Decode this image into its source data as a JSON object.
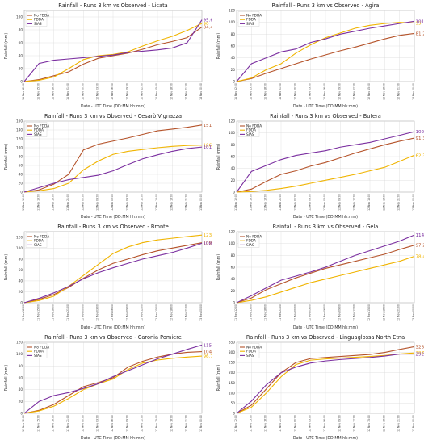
{
  "colors": {
    "No FDDA": "#b5532a",
    "FDDA": "#f0b400",
    "SIAS": "#7b2fa0"
  },
  "chart_data": [
    {
      "type": "line",
      "title": "Rainfall - Runs 3 km vs Observed - Licata",
      "xlabel": "Date - UTC Time (DD:MM hh:mm)",
      "ylabel": "Rainfall (mm)",
      "ylim": [
        0,
        110
      ],
      "yticks": [
        0,
        20,
        40,
        60,
        80,
        100
      ],
      "legend": "top-left",
      "grid": true,
      "xticks": [
        "11 Nov 12:00",
        "11 Nov 15:00",
        "11 Nov 18:00",
        "11 Nov 21:00",
        "12 Nov 00:00",
        "12 Nov 03:00",
        "12 Nov 06:00",
        "12 Nov 09:00",
        "12 Nov 12:00",
        "12 Nov 15:00",
        "12 Nov 18:00",
        "12 Nov 21:00",
        "13 Nov 00:00"
      ],
      "x": [
        0,
        1,
        2,
        3,
        4,
        5,
        6,
        7,
        8,
        9,
        10,
        11,
        12
      ],
      "series": [
        {
          "name": "No FDDA",
          "values": [
            0,
            3,
            9,
            15,
            27,
            36,
            40,
            44,
            50,
            57,
            62,
            68,
            84.4
          ],
          "end_label": "84.4"
        },
        {
          "name": "FDDA",
          "values": [
            0,
            2,
            7,
            20,
            34,
            40,
            42,
            46,
            55,
            63,
            70,
            79,
            90
          ],
          "end_label": "90"
        },
        {
          "name": "SIAS",
          "values": [
            0,
            28,
            33,
            35,
            37,
            39,
            41,
            45,
            47,
            49,
            52,
            60,
            95.6
          ],
          "end_label": "95.6"
        }
      ]
    },
    {
      "type": "line",
      "title": "Rainfall - Runs 3 km vs Observed - Agira",
      "xlabel": "Date - UTC Time (DD:MM hh:mm)",
      "ylabel": "Rainfall (mm)",
      "ylim": [
        0,
        120
      ],
      "yticks": [
        0,
        20,
        40,
        60,
        80,
        100,
        120
      ],
      "legend": "top-left",
      "grid": true,
      "xticks": [
        "11 Nov 12:00",
        "11 Nov 15:00",
        "11 Nov 18:00",
        "11 Nov 21:00",
        "12 Nov 00:00",
        "12 Nov 03:00",
        "12 Nov 06:00",
        "12 Nov 09:00",
        "12 Nov 12:00",
        "12 Nov 15:00",
        "12 Nov 18:00",
        "12 Nov 21:00",
        "13 Nov 00:00"
      ],
      "x": [
        0,
        1,
        2,
        3,
        4,
        5,
        6,
        7,
        8,
        9,
        10,
        11,
        12
      ],
      "series": [
        {
          "name": "No FDDA",
          "values": [
            0,
            5,
            14,
            22,
            30,
            38,
            45,
            52,
            58,
            65,
            72,
            78,
            81.2
          ],
          "end_label": "81.2"
        },
        {
          "name": "FDDA",
          "values": [
            0,
            6,
            20,
            30,
            48,
            62,
            74,
            82,
            90,
            95,
            98,
            100,
            99
          ],
          "end_label": "99"
        },
        {
          "name": "SIAS",
          "values": [
            0,
            30,
            40,
            50,
            55,
            66,
            72,
            80,
            85,
            90,
            94,
            98,
            101.9
          ],
          "end_label": "101.9"
        }
      ]
    },
    {
      "type": "line",
      "title": "Rainfall - Runs 3 km vs Observed - Cesarò Vignazza",
      "xlabel": "Date - UTC Time (DD:MM hh:mm)",
      "ylabel": "Rainfall (mm)",
      "ylim": [
        0,
        160
      ],
      "yticks": [
        0,
        20,
        40,
        60,
        80,
        100,
        120,
        140,
        160
      ],
      "legend": "top-left",
      "grid": true,
      "xticks": [
        "11 Nov 12:00",
        "11 Nov 15:00",
        "11 Nov 18:00",
        "11 Nov 21:00",
        "12 Nov 00:00",
        "12 Nov 03:00",
        "12 Nov 06:00",
        "12 Nov 09:00",
        "12 Nov 12:00",
        "12 Nov 15:00",
        "12 Nov 18:00",
        "12 Nov 21:00",
        "13 Nov 00:00"
      ],
      "x": [
        0,
        1,
        2,
        3,
        4,
        5,
        6,
        7,
        8,
        9,
        10,
        11,
        12
      ],
      "series": [
        {
          "name": "No FDDA",
          "values": [
            0,
            5,
            18,
            40,
            95,
            108,
            115,
            122,
            130,
            138,
            142,
            146,
            151.3
          ],
          "end_label": "151.3"
        },
        {
          "name": "FDDA",
          "values": [
            0,
            3,
            8,
            20,
            50,
            70,
            85,
            92,
            96,
            100,
            103,
            105,
            106
          ],
          "end_label": "106"
        },
        {
          "name": "SIAS",
          "values": [
            0,
            10,
            20,
            28,
            33,
            38,
            48,
            62,
            75,
            84,
            92,
            98,
            101.6
          ],
          "end_label": "101.6"
        }
      ]
    },
    {
      "type": "line",
      "title": "Rainfall - Runs 3 km vs Observed - Butera",
      "xlabel": "Date - UTC Time (DD:MM hh:mm)",
      "ylabel": "Rainfall (mm)",
      "ylim": [
        0,
        120
      ],
      "yticks": [
        0,
        20,
        40,
        60,
        80,
        100,
        120
      ],
      "legend": "top-left",
      "grid": true,
      "xticks": [
        "11 Nov 12:00",
        "11 Nov 15:00",
        "11 Nov 18:00",
        "11 Nov 21:00",
        "12 Nov 00:00",
        "12 Nov 03:00",
        "12 Nov 06:00",
        "12 Nov 09:00",
        "12 Nov 12:00",
        "12 Nov 15:00",
        "12 Nov 18:00",
        "12 Nov 21:00",
        "13 Nov 00:00"
      ],
      "x": [
        0,
        1,
        2,
        3,
        4,
        5,
        6,
        7,
        8,
        9,
        10,
        11,
        12
      ],
      "series": [
        {
          "name": "No FDDA",
          "values": [
            0,
            5,
            18,
            30,
            36,
            44,
            50,
            58,
            66,
            73,
            80,
            86,
            91.3
          ],
          "end_label": "91.3"
        },
        {
          "name": "FDDA",
          "values": [
            0,
            1,
            3,
            6,
            10,
            15,
            20,
            25,
            30,
            36,
            42,
            52,
            62.3
          ],
          "end_label": "62.3"
        },
        {
          "name": "SIAS",
          "values": [
            0,
            35,
            45,
            55,
            62,
            66,
            70,
            76,
            80,
            84,
            90,
            96,
            102.2
          ],
          "end_label": "102.2"
        }
      ]
    },
    {
      "type": "line",
      "title": "Rainfall - Runs 3 km vs Observed - Bronte",
      "xlabel": "Date - UTC Time (DD:MM hh:mm)",
      "ylabel": "Rainfall (mm)",
      "ylim": [
        0,
        130
      ],
      "yticks": [
        0,
        20,
        40,
        60,
        80,
        100,
        120
      ],
      "legend": "top-left",
      "grid": true,
      "xticks": [
        "11 Nov 12:00",
        "11 Nov 15:00",
        "11 Nov 18:00",
        "11 Nov 21:00",
        "12 Nov 00:00",
        "12 Nov 03:00",
        "12 Nov 06:00",
        "12 Nov 09:00",
        "12 Nov 12:00",
        "12 Nov 15:00",
        "12 Nov 18:00",
        "12 Nov 21:00",
        "13 Nov 00:00"
      ],
      "x": [
        0,
        1,
        2,
        3,
        4,
        5,
        6,
        7,
        8,
        9,
        10,
        11,
        12
      ],
      "series": [
        {
          "name": "No FDDA",
          "values": [
            0,
            6,
            15,
            28,
            45,
            60,
            72,
            80,
            88,
            95,
            100,
            105,
            109.9
          ],
          "end_label": "109.9"
        },
        {
          "name": "FDDA",
          "values": [
            0,
            4,
            12,
            30,
            50,
            70,
            90,
            102,
            110,
            115,
            118,
            121,
            123.8
          ],
          "end_label": "123.8"
        },
        {
          "name": "SIAS",
          "values": [
            0,
            8,
            18,
            30,
            44,
            55,
            64,
            72,
            80,
            86,
            92,
            100,
            108.8
          ],
          "end_label": "108.8"
        }
      ]
    },
    {
      "type": "line",
      "title": "Rainfall - Runs 3 km vs Observed - Gela",
      "xlabel": "Date - UTC Time (DD:MM hh:mm)",
      "ylabel": "Rainfall (mm)",
      "ylim": [
        0,
        120
      ],
      "yticks": [
        0,
        20,
        40,
        60,
        80,
        100,
        120
      ],
      "legend": "top-left",
      "grid": true,
      "xticks": [
        "11 Nov 12:00",
        "11 Nov 15:00",
        "11 Nov 18:00",
        "11 Nov 21:00",
        "12 Nov 00:00",
        "12 Nov 03:00",
        "12 Nov 06:00",
        "12 Nov 09:00",
        "12 Nov 12:00",
        "12 Nov 15:00",
        "12 Nov 18:00",
        "12 Nov 21:00",
        "13 Nov 00:00"
      ],
      "x": [
        0,
        1,
        2,
        3,
        4,
        5,
        6,
        7,
        8,
        9,
        10,
        11,
        12
      ],
      "series": [
        {
          "name": "No FDDA",
          "values": [
            0,
            8,
            22,
            32,
            42,
            50,
            58,
            64,
            70,
            76,
            82,
            90,
            97.2
          ],
          "end_label": "97.2"
        },
        {
          "name": "FDDA",
          "values": [
            0,
            4,
            10,
            18,
            26,
            34,
            40,
            46,
            52,
            58,
            64,
            70,
            78.4
          ],
          "end_label": "78.4"
        },
        {
          "name": "SIAS",
          "values": [
            0,
            12,
            25,
            38,
            45,
            52,
            60,
            70,
            80,
            88,
            96,
            104,
            114.4
          ],
          "end_label": "114.4"
        }
      ]
    },
    {
      "type": "line",
      "title": "Rainfall - Runs 3 km vs Observed - Caronia Pomiere",
      "xlabel": "Date - UTC Time (DD:MM hh:mm)",
      "ylabel": "Rainfall (mm)",
      "ylim": [
        0,
        120
      ],
      "yticks": [
        0,
        20,
        40,
        60,
        80,
        100,
        120
      ],
      "legend": "top-left",
      "grid": true,
      "xticks": [
        "11 Nov 12:00",
        "11 Nov 15:00",
        "11 Nov 18:00",
        "11 Nov 21:00",
        "12 Nov 00:00",
        "12 Nov 03:00",
        "12 Nov 06:00",
        "12 Nov 09:00",
        "12 Nov 12:00",
        "12 Nov 15:00",
        "12 Nov 18:00",
        "12 Nov 21:00",
        "13 Nov 00:00"
      ],
      "x": [
        0,
        1,
        2,
        3,
        4,
        5,
        6,
        7,
        8,
        9,
        10,
        11,
        12
      ],
      "series": [
        {
          "name": "No FDDA",
          "values": [
            0,
            5,
            15,
            30,
            45,
            52,
            60,
            78,
            88,
            95,
            100,
            103,
            104.3
          ],
          "end_label": "104.3"
        },
        {
          "name": "FDDA",
          "values": [
            0,
            4,
            12,
            25,
            40,
            50,
            58,
            74,
            85,
            90,
            93,
            95,
            96.7
          ],
          "end_label": "96.7"
        },
        {
          "name": "SIAS",
          "values": [
            0,
            20,
            30,
            35,
            42,
            50,
            62,
            72,
            82,
            92,
            100,
            108,
            115.4
          ],
          "end_label": "115.4"
        }
      ]
    },
    {
      "type": "line",
      "title": "Rainfall - Runs 3 km vs Observed - Linguaglossa North Etna",
      "xlabel": "Date - UTC Time (DD:MM hh:mm)",
      "ylabel": "Rainfall (mm)",
      "ylim": [
        0,
        350
      ],
      "yticks": [
        0,
        50,
        100,
        150,
        200,
        250,
        300,
        350
      ],
      "legend": "top-left",
      "grid": true,
      "xticks": [
        "11 Nov 12:00",
        "11 Nov 15:00",
        "11 Nov 18:00",
        "11 Nov 21:00",
        "12 Nov 00:00",
        "12 Nov 03:00",
        "12 Nov 06:00",
        "12 Nov 09:00",
        "12 Nov 12:00",
        "12 Nov 15:00",
        "12 Nov 18:00",
        "12 Nov 21:00",
        "13 Nov 00:00"
      ],
      "x": [
        0,
        1,
        2,
        3,
        4,
        5,
        6,
        7,
        8,
        9,
        10,
        11,
        12
      ],
      "series": [
        {
          "name": "No FDDA",
          "values": [
            0,
            40,
            120,
            200,
            250,
            270,
            275,
            280,
            285,
            290,
            300,
            315,
            328.3
          ],
          "end_label": "328.3"
        },
        {
          "name": "FDDA",
          "values": [
            0,
            30,
            100,
            180,
            240,
            262,
            268,
            272,
            276,
            280,
            285,
            292,
            297.6
          ],
          "end_label": "297.6"
        },
        {
          "name": "SIAS",
          "values": [
            0,
            60,
            140,
            200,
            228,
            248,
            258,
            265,
            270,
            275,
            282,
            292,
            292.2
          ],
          "end_label": "292.2"
        }
      ]
    }
  ]
}
